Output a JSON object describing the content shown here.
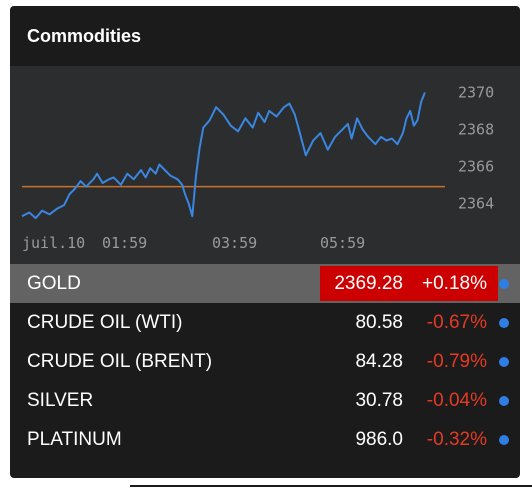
{
  "header": {
    "title": "Commodities"
  },
  "colors": {
    "line": "#3a86e0",
    "baseline": "#c9712a",
    "positive_bg": "#cc0000",
    "negative_text": "#e53a23",
    "dot": "#2f7ee3"
  },
  "chart_data": {
    "type": "line",
    "title": "",
    "xlabel": "",
    "ylabel": "",
    "x_tick_labels": [
      "juil.10",
      "01:59",
      "03:59",
      "05:59"
    ],
    "y_tick_labels": [
      "2370",
      "2368",
      "2366",
      "2364"
    ],
    "y_ticks": [
      2370,
      2368,
      2366,
      2364
    ],
    "ylim": [
      2362.5,
      2371
    ],
    "xlim": [
      0,
      462
    ],
    "baseline": 2364.9,
    "series": [
      {
        "x": [
          0,
          8,
          15,
          22,
          30,
          38,
          46,
          52,
          58,
          64,
          70,
          78,
          82,
          88,
          95,
          100,
          108,
          115,
          122,
          130,
          135,
          140,
          146,
          150,
          156,
          162,
          170,
          175,
          178,
          182,
          186,
          190,
          194,
          198,
          205,
          212,
          220,
          228,
          236,
          244,
          252,
          258,
          265,
          270,
          278,
          286,
          292,
          298,
          303,
          310,
          318,
          326,
          334,
          342,
          350,
          356,
          360,
          366,
          372,
          378,
          386,
          392,
          398,
          404,
          410,
          416,
          420,
          424,
          428,
          432,
          436,
          440
        ],
        "values": [
          2363.3,
          2363.5,
          2363.2,
          2363.6,
          2363.4,
          2363.7,
          2363.9,
          2364.5,
          2364.8,
          2365.2,
          2364.9,
          2365.3,
          2365.6,
          2365.1,
          2365.3,
          2365.4,
          2365.0,
          2365.6,
          2365.3,
          2365.8,
          2365.4,
          2365.9,
          2365.6,
          2366.1,
          2365.8,
          2365.5,
          2365.3,
          2365.0,
          2364.5,
          2364.0,
          2363.3,
          2365.5,
          2367.0,
          2368.1,
          2368.5,
          2369.2,
          2368.8,
          2368.2,
          2367.9,
          2368.6,
          2368.1,
          2368.9,
          2368.4,
          2369.0,
          2368.7,
          2369.2,
          2369.4,
          2368.8,
          2367.9,
          2366.6,
          2367.4,
          2367.8,
          2366.9,
          2367.6,
          2368.0,
          2368.3,
          2367.5,
          2368.6,
          2368.0,
          2367.6,
          2367.2,
          2367.6,
          2367.4,
          2367.5,
          2367.2,
          2367.8,
          2368.6,
          2369.0,
          2368.2,
          2368.5,
          2369.5,
          2370.0
        ]
      }
    ]
  },
  "rows": [
    {
      "name": "GOLD",
      "price": "2369.28",
      "change": "+0.18%",
      "selected": true
    },
    {
      "name": "CRUDE OIL (WTI)",
      "price": "80.58",
      "change": "-0.67%"
    },
    {
      "name": "CRUDE OIL (BRENT)",
      "price": "84.28",
      "change": "-0.79%"
    },
    {
      "name": "SILVER",
      "price": "30.78",
      "change": "-0.04%"
    },
    {
      "name": "PLATINUM",
      "price": "986.0",
      "change": "-0.32%"
    }
  ]
}
